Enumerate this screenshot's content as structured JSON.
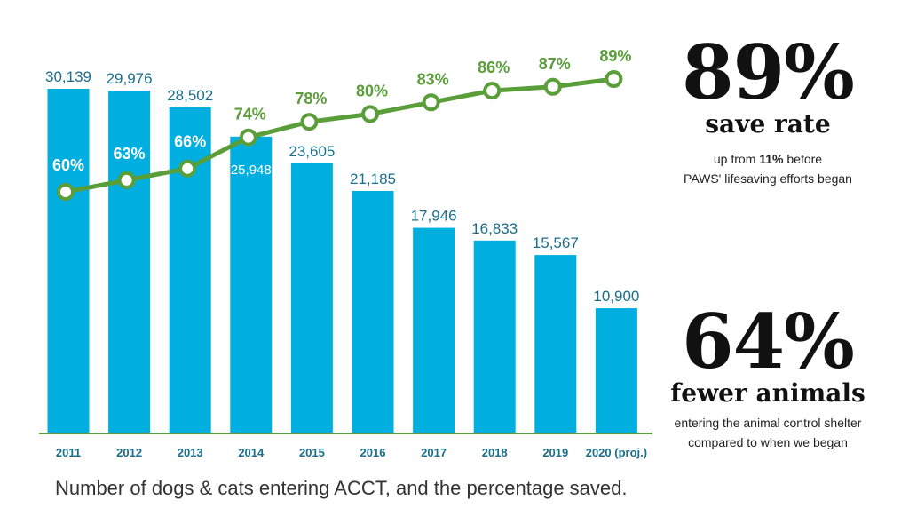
{
  "chart_data": {
    "type": "bar",
    "caption": "Number of dogs & cats entering ACCT, and the percentage saved.",
    "categories": [
      "2011",
      "2012",
      "2013",
      "2014",
      "2015",
      "2016",
      "2017",
      "2018",
      "2019",
      "2020 (proj.)"
    ],
    "series": [
      {
        "type": "bar",
        "values": [
          30139,
          29976,
          28502,
          25948,
          23605,
          21185,
          17946,
          16833,
          15567,
          10900
        ],
        "labels": [
          "30,139",
          "29,976",
          "28,502",
          "25,948",
          "23,605",
          "21,185",
          "17,946",
          "16,833",
          "15,567",
          "10,900"
        ],
        "color": "#00aee0"
      },
      {
        "type": "line",
        "values": [
          60,
          63,
          66,
          74,
          78,
          80,
          83,
          86,
          87,
          89
        ],
        "labels": [
          "60%",
          "63%",
          "66%",
          "74%",
          "78%",
          "80%",
          "83%",
          "86%",
          "87%",
          "89%"
        ],
        "color": "#5a9e3a"
      }
    ],
    "ylim": [
      0,
      30139
    ],
    "grid": false
  },
  "stats": {
    "save_rate": {
      "value": "89%",
      "label": "save rate",
      "note_prefix": "up from ",
      "note_bold": "11%",
      "note_suffix": " before",
      "note_line2": "PAWS' lifesaving efforts began"
    },
    "fewer_animals": {
      "value": "64%",
      "label": "fewer animals",
      "note_line1": "entering the animal control shelter",
      "note_line2": "compared to when we began"
    }
  },
  "colors": {
    "bar": "#00aee0",
    "bar_label": "#1a6f8c",
    "line": "#5a9e3a",
    "year_label": "#1a6f8c"
  }
}
